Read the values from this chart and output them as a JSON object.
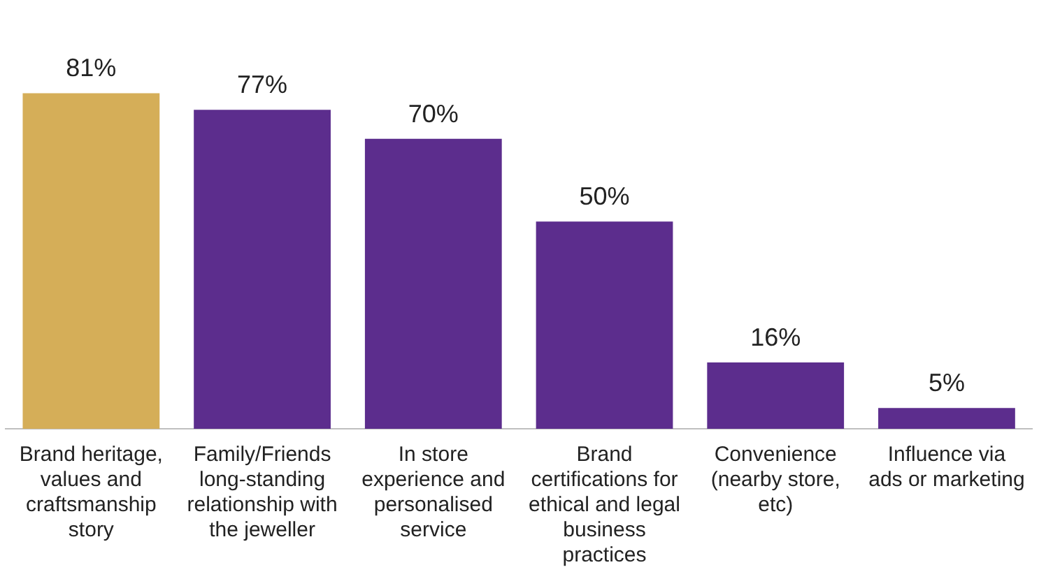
{
  "chart_data": {
    "type": "bar",
    "categories": [
      "Brand heritage, values and craftsmanship story",
      "Family/Friends long-standing relationship with the jeweller",
      "In store experience and personalised service",
      "Brand certifications for ethical and legal business practices",
      "Convenience (nearby store, etc)",
      "Influence via ads or marketing"
    ],
    "values": [
      81,
      77,
      70,
      50,
      16,
      5
    ],
    "colors": [
      "#d5ae58",
      "#5c2d8d",
      "#5c2d8d",
      "#5c2d8d",
      "#5c2d8d",
      "#5c2d8d"
    ],
    "value_labels": [
      "81%",
      "77%",
      "70%",
      "50%",
      "16%",
      "5%"
    ],
    "grid": false,
    "legend": false
  }
}
